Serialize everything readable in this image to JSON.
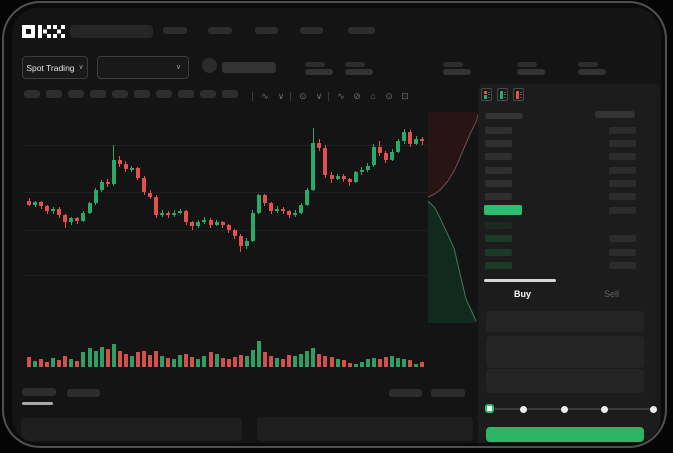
{
  "app": {
    "brand": "OKX"
  },
  "header": {
    "market_selector_label": "Spot Trading",
    "chevron": "∨",
    "nav_skeleton_items": 5,
    "stat_skeleton_groups": 5
  },
  "toolbar": {
    "timeframe_chips": 10,
    "icons": [
      {
        "name": "candle-style-icon",
        "glyph": "∿",
        "divider_before": true
      },
      {
        "name": "chevron-down-icon",
        "glyph": "∨",
        "divider_before": false
      },
      {
        "name": "indicators-icon",
        "glyph": "⊙",
        "divider_before": true
      },
      {
        "name": "chevron-down-icon",
        "glyph": "∨",
        "divider_before": false
      },
      {
        "name": "line-tools-icon",
        "glyph": "∿",
        "divider_before": true
      },
      {
        "name": "compare-icon",
        "glyph": "⊘",
        "divider_before": false
      },
      {
        "name": "snapshot-icon",
        "glyph": "⌂",
        "divider_before": false
      },
      {
        "name": "settings-icon",
        "glyph": "⊙",
        "divider_before": false
      },
      {
        "name": "fullscreen-icon",
        "glyph": "⊡",
        "divider_before": false
      }
    ]
  },
  "order_book": {
    "view_icons": [
      "combined-book-icon",
      "bids-book-icon",
      "asks-book-icon"
    ],
    "ask_rows": 6,
    "bid_rows": [
      {
        "dim": true,
        "right_bar": false
      },
      {
        "dim": false,
        "right_bar": true
      },
      {
        "dim": false,
        "right_bar": true
      },
      {
        "dim": false,
        "right_bar": true
      }
    ]
  },
  "trade_panel": {
    "buy_tab_label": "Buy",
    "sell_tab_label": "Sell",
    "active_tab": "Buy",
    "slider": {
      "stop_count": 5,
      "selected_index": 0
    },
    "submit_label": ""
  },
  "colors": {
    "up_green": "#2aa968",
    "down_red": "#e4504f",
    "vol_green": "#2f9e63",
    "vol_red": "#d2514d",
    "price_bar_green": "#2ebd70",
    "button_green": "#2cb565",
    "depth_ask_fill": "#261514",
    "depth_ask_line": "#7c4a48",
    "depth_bid_fill": "#122a1d",
    "depth_bid_line": "#3f7a58",
    "bid_row_green": "#1b3a28",
    "bid_row_green_dim": "#1d2a22"
  },
  "chart_data": {
    "type": "candlestick",
    "title": "",
    "xlabel": "",
    "ylabel": "",
    "axis_labels_visible": false,
    "grid": true,
    "price_range": [
      0,
      100
    ],
    "candles": [
      [
        44,
        46,
        40,
        41
      ],
      [
        41,
        44,
        39,
        43
      ],
      [
        43,
        44,
        38,
        40
      ],
      [
        40,
        41,
        34,
        36
      ],
      [
        36,
        39,
        34,
        38
      ],
      [
        38,
        39,
        31,
        33
      ],
      [
        33,
        34,
        24,
        28
      ],
      [
        28,
        32,
        26,
        31
      ],
      [
        31,
        32,
        27,
        29
      ],
      [
        29,
        36,
        28,
        35
      ],
      [
        35,
        43,
        34,
        42
      ],
      [
        42,
        53,
        41,
        52
      ],
      [
        52,
        59,
        50,
        58
      ],
      [
        58,
        60,
        54,
        56
      ],
      [
        56,
        85,
        55,
        74
      ],
      [
        74,
        77,
        69,
        71
      ],
      [
        71,
        73,
        65,
        67
      ],
      [
        67,
        70,
        65,
        68
      ],
      [
        68,
        69,
        59,
        61
      ],
      [
        61,
        62,
        48,
        50
      ],
      [
        50,
        52,
        45,
        47
      ],
      [
        47,
        48,
        31,
        33
      ],
      [
        33,
        37,
        32,
        35
      ],
      [
        35,
        36,
        31,
        33
      ],
      [
        33,
        37,
        32,
        35
      ],
      [
        35,
        38,
        34,
        36
      ],
      [
        36,
        37,
        26,
        28
      ],
      [
        28,
        29,
        22,
        25
      ],
      [
        25,
        30,
        24,
        28
      ],
      [
        28,
        32,
        27,
        30
      ],
      [
        30,
        31,
        24,
        26
      ],
      [
        26,
        30,
        25,
        28
      ],
      [
        28,
        29,
        24,
        26
      ],
      [
        26,
        27,
        20,
        22
      ],
      [
        22,
        23,
        16,
        18
      ],
      [
        18,
        19,
        6,
        10
      ],
      [
        10,
        16,
        8,
        14
      ],
      [
        14,
        37,
        13,
        35
      ],
      [
        35,
        49,
        34,
        48
      ],
      [
        48,
        49,
        40,
        42
      ],
      [
        42,
        43,
        34,
        36
      ],
      [
        36,
        40,
        35,
        38
      ],
      [
        38,
        39,
        34,
        36
      ],
      [
        36,
        37,
        31,
        33
      ],
      [
        33,
        37,
        32,
        35
      ],
      [
        35,
        42,
        34,
        41
      ],
      [
        41,
        53,
        40,
        52
      ],
      [
        52,
        98,
        51,
        87
      ],
      [
        87,
        90,
        81,
        83
      ],
      [
        83,
        85,
        61,
        63
      ],
      [
        63,
        65,
        57,
        60
      ],
      [
        60,
        64,
        59,
        62
      ],
      [
        62,
        64,
        58,
        60
      ],
      [
        60,
        61,
        55,
        58
      ],
      [
        58,
        66,
        57,
        65
      ],
      [
        65,
        69,
        63,
        67
      ],
      [
        67,
        72,
        65,
        70
      ],
      [
        70,
        86,
        69,
        84
      ],
      [
        84,
        88,
        77,
        79
      ],
      [
        79,
        81,
        72,
        74
      ],
      [
        74,
        82,
        73,
        80
      ],
      [
        80,
        90,
        79,
        88
      ],
      [
        88,
        97,
        86,
        95
      ],
      [
        95,
        96,
        84,
        86
      ],
      [
        86,
        92,
        85,
        90
      ],
      [
        90,
        91,
        85,
        88
      ]
    ],
    "volumes": [
      38,
      22,
      30,
      18,
      35,
      25,
      40,
      30,
      22,
      55,
      70,
      60,
      75,
      65,
      85,
      60,
      50,
      40,
      55,
      60,
      45,
      58,
      40,
      35,
      30,
      45,
      50,
      38,
      30,
      42,
      55,
      48,
      35,
      30,
      38,
      45,
      40,
      62,
      95,
      55,
      42,
      35,
      30,
      45,
      40,
      50,
      58,
      70,
      48,
      42,
      38,
      30,
      25,
      15,
      12,
      20,
      28,
      35,
      30,
      38,
      42,
      35,
      30,
      25,
      12,
      18
    ]
  }
}
